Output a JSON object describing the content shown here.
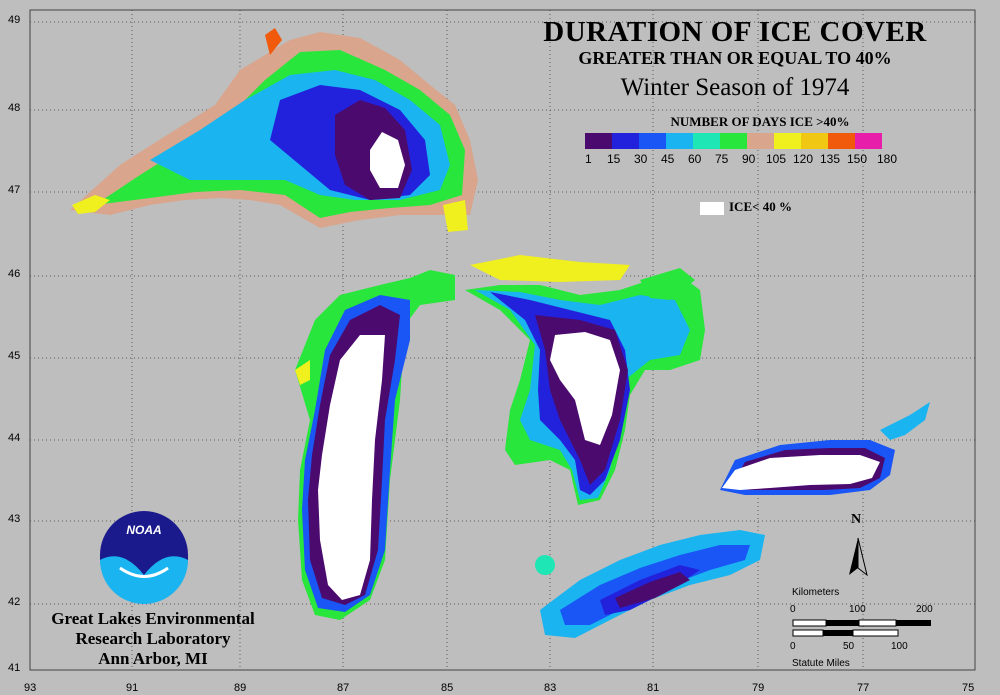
{
  "title": {
    "line1": "DURATION OF ICE COVER",
    "line2": "GREATER THAN OR EQUAL TO 40%",
    "line3": "Winter Season of 1974"
  },
  "legend": {
    "title": "NUMBER OF DAYS ICE >40%",
    "labels": [
      "1",
      "15",
      "30",
      "45",
      "60",
      "75",
      "90",
      "105",
      "120",
      "135",
      "150",
      "180"
    ],
    "colors": [
      "#4b0a6e",
      "#2222dd",
      "#1a55f5",
      "#1ab4f0",
      "#1ee6b4",
      "#28e63c",
      "#d9a58c",
      "#f0f01e",
      "#f0c814",
      "#f05a0a",
      "#e61eaa"
    ],
    "ice_label": "ICE< 40 %",
    "ice_color": "#ffffff"
  },
  "axes": {
    "latitudes": [
      "49",
      "48",
      "47",
      "46",
      "45",
      "44",
      "43",
      "42",
      "41"
    ],
    "longitudes": [
      "93",
      "91",
      "89",
      "87",
      "85",
      "83",
      "81",
      "79",
      "77",
      "75"
    ]
  },
  "north_arrow": "N",
  "scale_bar": {
    "km_title": "Kilometers",
    "km_ticks": [
      "0",
      "100",
      "200"
    ],
    "mi_ticks": [
      "0",
      "50",
      "100"
    ],
    "mi_title": "Statute Miles"
  },
  "logo_text": "NOAA",
  "organization": {
    "line1": "Great Lakes Environmental",
    "line2": "Research Laboratory",
    "line3": "Ann Arbor, MI"
  }
}
